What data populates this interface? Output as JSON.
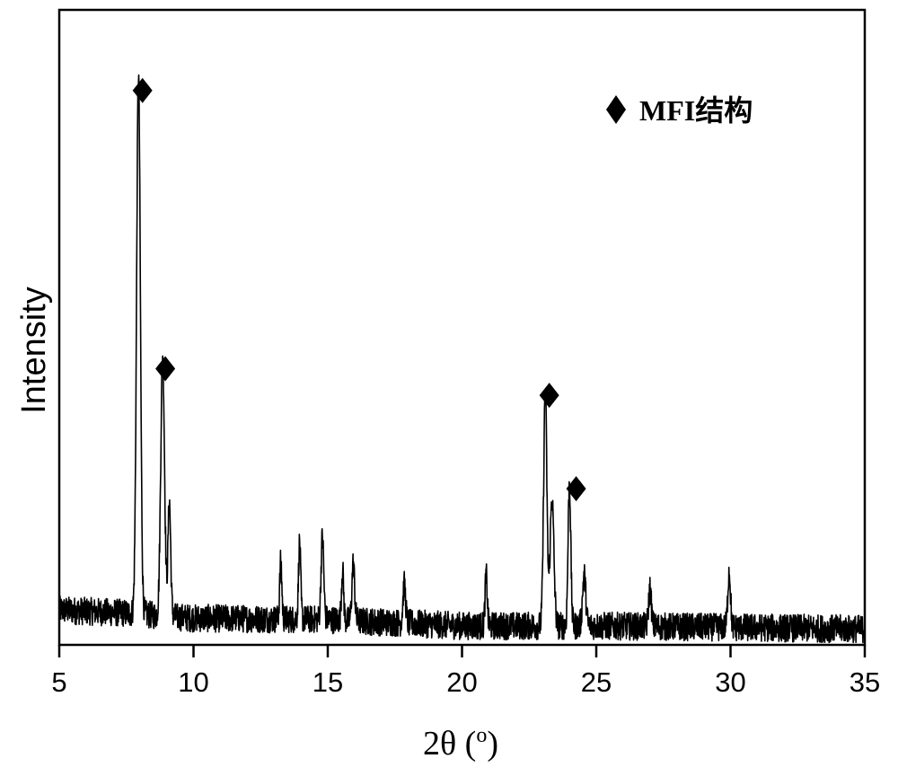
{
  "chart_data": {
    "type": "line",
    "xlabel": "2θ (",
    "xlabel_sup": "o",
    "xlabel_close": ")",
    "ylabel": "Intensity",
    "xlim": [
      5,
      35
    ],
    "ylim": [
      0,
      100
    ],
    "y_units": "arbitrary",
    "xticks": [
      5,
      10,
      15,
      20,
      25,
      30,
      35
    ],
    "grid": false,
    "legend_position": "top-right",
    "legend": [
      {
        "marker": "diamond",
        "label": "MFI结构"
      }
    ],
    "line_color": "#000000",
    "baseline": [
      [
        5,
        5.5
      ],
      [
        7.5,
        5.0
      ],
      [
        10,
        4.2
      ],
      [
        15,
        4.0
      ],
      [
        20,
        3.0
      ],
      [
        25,
        3.0
      ],
      [
        35,
        2.5
      ]
    ],
    "noise_amplitude": 2.2,
    "peaks": [
      {
        "x": 7.95,
        "intensity": 85,
        "width": 0.07
      },
      {
        "x": 8.85,
        "intensity": 41,
        "width": 0.07
      },
      {
        "x": 9.1,
        "intensity": 18,
        "width": 0.05
      },
      {
        "x": 13.25,
        "intensity": 9,
        "width": 0.04
      },
      {
        "x": 13.95,
        "intensity": 12,
        "width": 0.04
      },
      {
        "x": 14.8,
        "intensity": 13,
        "width": 0.05
      },
      {
        "x": 15.55,
        "intensity": 8,
        "width": 0.04
      },
      {
        "x": 15.95,
        "intensity": 9,
        "width": 0.05
      },
      {
        "x": 17.85,
        "intensity": 6,
        "width": 0.05
      },
      {
        "x": 20.9,
        "intensity": 8,
        "width": 0.04
      },
      {
        "x": 23.1,
        "intensity": 37,
        "width": 0.06
      },
      {
        "x": 23.35,
        "intensity": 20,
        "width": 0.07
      },
      {
        "x": 24.0,
        "intensity": 22.5,
        "width": 0.05
      },
      {
        "x": 24.55,
        "intensity": 8,
        "width": 0.06
      },
      {
        "x": 27.0,
        "intensity": 6,
        "width": 0.05
      },
      {
        "x": 29.95,
        "intensity": 9,
        "width": 0.05
      }
    ],
    "markers": [
      {
        "x": 8.1,
        "y": 87.3
      },
      {
        "x": 8.95,
        "y": 43.5
      },
      {
        "x": 23.25,
        "y": 39.3
      },
      {
        "x": 24.25,
        "y": 24.6
      }
    ]
  }
}
